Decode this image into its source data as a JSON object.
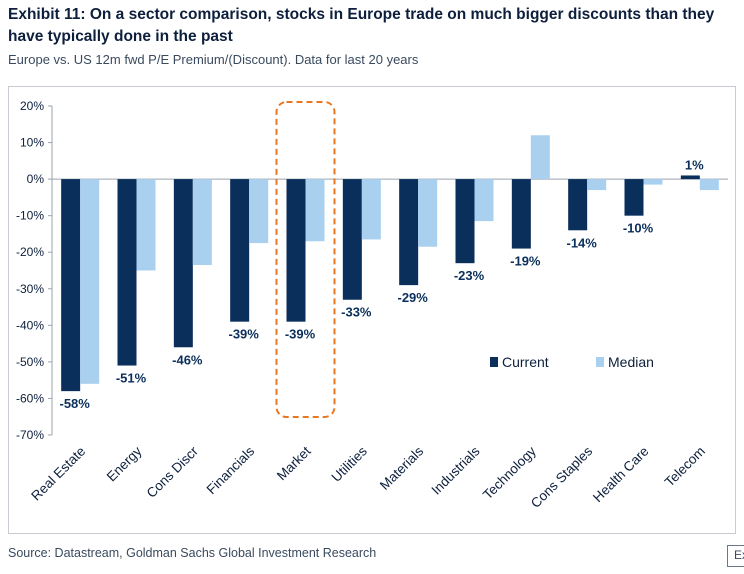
{
  "header": {
    "title": "Exhibit 11: On a sector comparison, stocks in Europe trade on much bigger discounts than they have typically done in the past",
    "subtitle": "Europe vs. US 12m fwd P/E Premium/(Discount). Data for last 20 years"
  },
  "footer": {
    "source": "Source: Datastream, Goldman Sachs Global Investment Research",
    "corner_tag": "Ex"
  },
  "colors": {
    "current": "#0b2f5b",
    "median": "#a9d0ef",
    "highlight": "#e87722",
    "axis": "#9aa3ad"
  },
  "chart_data": {
    "type": "bar",
    "categories": [
      "Real Estate",
      "Energy",
      "Cons Discr",
      "Financials",
      "Market",
      "Utilities",
      "Materials",
      "Industrials",
      "Technology",
      "Cons Staples",
      "Health Care",
      "Telecom"
    ],
    "series": [
      {
        "name": "Current",
        "values": [
          -58,
          -51,
          -46,
          -39,
          -39,
          -33,
          -29,
          -23,
          -19,
          -14,
          -10,
          1
        ]
      },
      {
        "name": "Median",
        "values": [
          -56,
          -25,
          -23.5,
          -17.5,
          -17,
          -16.5,
          -18.5,
          -11.5,
          12,
          -3,
          -1.5,
          -3
        ]
      }
    ],
    "data_labels": [
      "-58%",
      "-51%",
      "-46%",
      "-39%",
      "-39%",
      "-33%",
      "-29%",
      "-23%",
      "-19%",
      "-14%",
      "-10%",
      "1%"
    ],
    "y_ticks": [
      20,
      10,
      0,
      -10,
      -20,
      -30,
      -40,
      -50,
      -60,
      -70
    ],
    "y_tick_labels": [
      "20%",
      "10%",
      "0%",
      "-10%",
      "-20%",
      "-30%",
      "-40%",
      "-50%",
      "-60%",
      "-70%"
    ],
    "ylim": [
      -70,
      20
    ],
    "highlighted_category": "Market",
    "legend_position": "right, inside plot",
    "grid": false
  }
}
